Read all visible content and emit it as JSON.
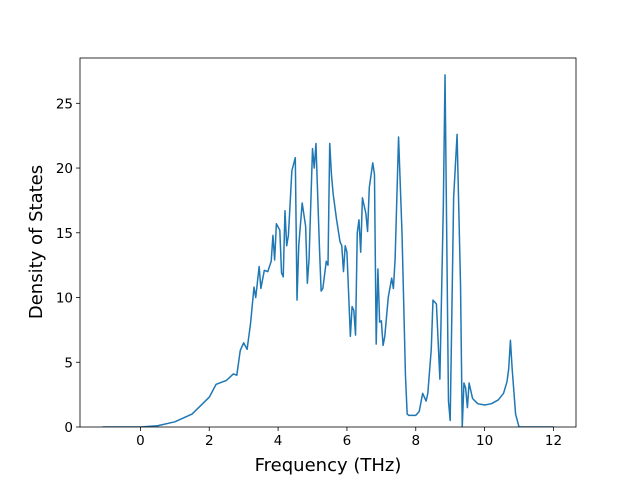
{
  "chart_data": {
    "type": "line",
    "xlabel": "Frequency (THz)",
    "ylabel": "Density of States",
    "x": [
      -1.1,
      -0.5,
      0,
      0.5,
      1.0,
      1.5,
      2.0,
      2.2,
      2.5,
      2.7,
      2.8,
      2.9,
      3.0,
      3.1,
      3.2,
      3.3,
      3.35,
      3.45,
      3.5,
      3.6,
      3.7,
      3.8,
      3.85,
      3.9,
      3.95,
      4.05,
      4.1,
      4.15,
      4.2,
      4.25,
      4.3,
      4.4,
      4.5,
      4.55,
      4.6,
      4.7,
      4.8,
      4.85,
      4.9,
      5.0,
      5.05,
      5.1,
      5.2,
      5.25,
      5.3,
      5.4,
      5.45,
      5.5,
      5.55,
      5.6,
      5.7,
      5.8,
      5.85,
      5.9,
      5.95,
      6.0,
      6.1,
      6.15,
      6.2,
      6.25,
      6.3,
      6.35,
      6.4,
      6.45,
      6.55,
      6.6,
      6.65,
      6.75,
      6.8,
      6.85,
      6.9,
      6.95,
      7.0,
      7.05,
      7.1,
      7.2,
      7.3,
      7.35,
      7.4,
      7.5,
      7.6,
      7.7,
      7.75,
      7.8,
      8.0,
      8.1,
      8.2,
      8.3,
      8.35,
      8.45,
      8.5,
      8.6,
      8.7,
      8.8,
      8.85,
      8.95,
      9.0,
      9.1,
      9.2,
      9.3,
      9.35,
      9.4,
      9.45,
      9.5,
      9.55,
      9.65,
      9.8,
      10.0,
      10.2,
      10.4,
      10.55,
      10.65,
      10.7,
      10.75,
      10.8,
      10.9,
      11.0,
      12.0
    ],
    "values": [
      0,
      0,
      0,
      0.1,
      0.4,
      1.0,
      2.3,
      3.3,
      3.6,
      4.1,
      4.0,
      5.9,
      6.5,
      6.0,
      8.0,
      10.8,
      10.0,
      12.4,
      10.7,
      12.1,
      12.0,
      12.8,
      14.8,
      12.9,
      15.7,
      15.2,
      11.9,
      11.6,
      16.7,
      14.0,
      14.8,
      19.8,
      20.8,
      9.8,
      14.0,
      17.3,
      15.5,
      11.1,
      13.0,
      21.5,
      20.0,
      21.9,
      14.0,
      10.5,
      10.7,
      12.8,
      12.5,
      21.9,
      19.5,
      18.0,
      16.0,
      14.3,
      14.0,
      12.0,
      14.0,
      13.5,
      7.0,
      9.3,
      9.0,
      7.1,
      15.0,
      16.0,
      13.5,
      17.7,
      16.5,
      15.1,
      18.5,
      20.4,
      19.5,
      6.4,
      12.2,
      8.1,
      8.2,
      6.3,
      7.0,
      10.0,
      11.5,
      10.7,
      13.0,
      22.4,
      15.0,
      4.0,
      1.0,
      0.9,
      0.9,
      1.2,
      2.6,
      2.0,
      2.6,
      6.0,
      9.8,
      9.5,
      3.7,
      17.0,
      27.2,
      2.0,
      0.5,
      17.7,
      22.6,
      11.0,
      0,
      3.4,
      3.0,
      1.5,
      3.4,
      2.2,
      1.8,
      1.7,
      1.8,
      2.1,
      2.6,
      3.5,
      4.5,
      6.7,
      4.5,
      1.0,
      0,
      0
    ],
    "color": "#1f77b4",
    "xlim": [
      -1.755,
      12.655
    ],
    "ylim": [
      0,
      28.5
    ],
    "xticks": [
      0,
      2,
      4,
      6,
      8,
      10,
      12
    ],
    "yticks": [
      0,
      5,
      10,
      15,
      20,
      25
    ]
  }
}
